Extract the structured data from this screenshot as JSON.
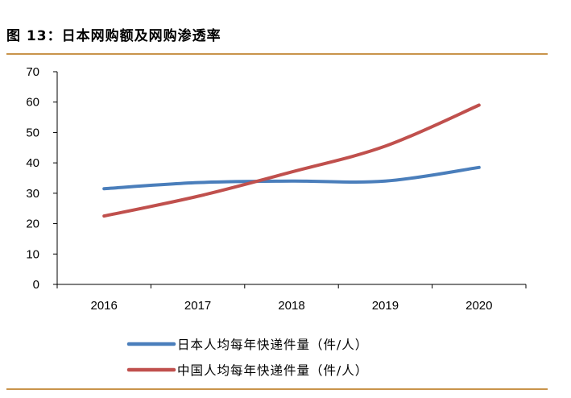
{
  "header": {
    "title": "图 13：日本网购额及网购渗透率"
  },
  "chart_data": {
    "type": "line",
    "title": "",
    "xlabel": "",
    "ylabel": "",
    "categories": [
      "2016",
      "2017",
      "2018",
      "2019",
      "2020"
    ],
    "ylim": [
      0,
      70
    ],
    "yticks": [
      "0",
      "10",
      "20",
      "30",
      "40",
      "50",
      "60",
      "70"
    ],
    "grid": false,
    "legend_position": "bottom",
    "series": [
      {
        "name": "日本人均每年快递件量（件/人）",
        "color": "#4a7ebb",
        "values": [
          31.5,
          33.5,
          34,
          34,
          38.5
        ]
      },
      {
        "name": "中国人均每年快递件量（件/人）",
        "color": "#c0504d",
        "values": [
          22.5,
          29,
          37,
          45.5,
          59
        ]
      }
    ]
  }
}
